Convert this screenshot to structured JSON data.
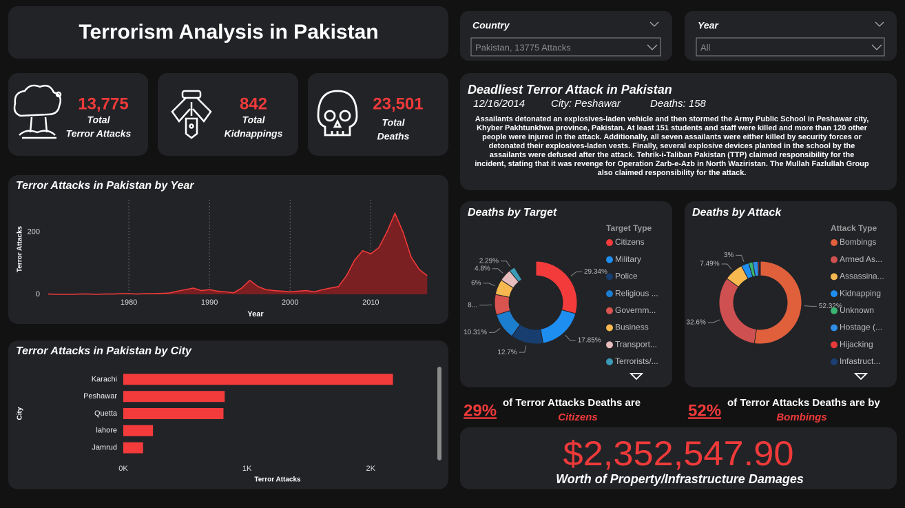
{
  "header": {
    "title": "Terrorism Analysis in Pakistan"
  },
  "filters": [
    {
      "label": "Country",
      "value": "Pakistan, 13775 Attacks"
    },
    {
      "label": "Year",
      "value": "All"
    }
  ],
  "kpis": [
    {
      "value": "13,775",
      "label": [
        "Total",
        "Terror Attacks"
      ]
    },
    {
      "value": "842",
      "label": [
        "Total",
        "Kidnappings"
      ]
    },
    {
      "value": "23,501",
      "label": [
        "Total",
        "Deaths"
      ]
    }
  ],
  "deadliest": {
    "title": "Deadliest Terror Attack in Pakistan",
    "date": "12/16/2014",
    "city": "City: Peshawar",
    "deaths": "Deaths: 158",
    "description": "Assailants detonated an explosives-laden vehicle and then stormed the Army Public School in Peshawar city, Khyber Pakhtunkhwa province, Pakistan. At least 151 students and staff were killed and more than 120 other people were injured in the attack. Additionally, all seven assailants were either killed by security forces or detonated their explosives-laden vests. Finally, several explosive devices planted in the school by the assailants were defused after the attack. Tehrik-i-Taliban Pakistan (TTP) claimed responsibility for the incident, stating that it was revenge for Operation Zarb-e-Azb in North Waziristan. The Mullah Fazlullah Group also claimed responsibility for the attack."
  },
  "chart_data": [
    {
      "type": "line",
      "title": "Terror Attacks in Pakistan by Year",
      "x_label": "Year",
      "y_label": "Terror Attacks",
      "x": [
        1970,
        1971,
        1972,
        1973,
        1974,
        1975,
        1976,
        1977,
        1978,
        1979,
        1980,
        1981,
        1982,
        1983,
        1984,
        1985,
        1986,
        1987,
        1988,
        1989,
        1990,
        1991,
        1992,
        1993,
        1994,
        1995,
        1996,
        1997,
        1998,
        1999,
        2000,
        2001,
        2002,
        2003,
        2004,
        2005,
        2006,
        2007,
        2008,
        2009,
        2010,
        2011,
        2012,
        2013,
        2014,
        2015,
        2016,
        2017
      ],
      "values": [
        1,
        0,
        0,
        0,
        1,
        1,
        0,
        1,
        1,
        2,
        2,
        1,
        2,
        2,
        3,
        4,
        10,
        15,
        20,
        12,
        15,
        10,
        8,
        5,
        20,
        45,
        25,
        15,
        12,
        10,
        8,
        10,
        12,
        8,
        15,
        20,
        25,
        60,
        110,
        140,
        130,
        150,
        200,
        260,
        200,
        120,
        80,
        60
      ],
      "color": "#f03a3a",
      "fill": "#7a1f22",
      "xlim": [
        1970,
        2018
      ],
      "xticks": [
        1980,
        1990,
        2000,
        2010
      ],
      "ylim": [
        0,
        290
      ],
      "yticks": [
        0,
        200
      ],
      "grid": "x"
    },
    {
      "type": "bar",
      "orientation": "horizontal",
      "title": "Terror Attacks in Pakistan by City",
      "x_label": "Terror Attacks",
      "y_label": "City",
      "categories": [
        "Karachi",
        "Peshawar",
        "Quetta",
        "lahore",
        "Jamrud"
      ],
      "values": [
        2180,
        820,
        810,
        240,
        160
      ],
      "color": "#f33b3b",
      "xlim": [
        0,
        2500
      ],
      "xticks": [
        {
          "value": 0,
          "label": "0K"
        },
        {
          "value": 1000,
          "label": "1K"
        },
        {
          "value": 2000,
          "label": "2K"
        }
      ]
    },
    {
      "type": "pie",
      "title": "Deaths by Target",
      "legend_title": "Target Type",
      "categories": [
        "Citizens",
        "Military",
        "Police",
        "Religious ...",
        "Governm...",
        "Business",
        "Transport...",
        "Terrorists/..."
      ],
      "values": [
        29.34,
        17.85,
        12.7,
        10.31,
        8,
        6,
        4.8,
        2.29
      ],
      "value_labels": [
        "29.34%",
        "17.85%",
        "12.7%",
        "10.31%",
        "8...",
        "6%",
        "4.8%",
        "2.29%"
      ],
      "colors": [
        "#f33b3b",
        "#1f8ef1",
        "#173e6e",
        "#1c7ecf",
        "#d9544f",
        "#f7b94f",
        "#e6bcbc",
        "#3a9ab8"
      ]
    },
    {
      "type": "pie",
      "title": "Deaths by Attack",
      "legend_title": "Attack Type",
      "categories": [
        "Bombings",
        "Armed As...",
        "Assassina...",
        "Kidnapping",
        "Unknown",
        "Hostage (...",
        "Hijacking",
        "Infastruct..."
      ],
      "values": [
        52.32,
        32.6,
        7.49,
        3,
        1.6,
        2,
        0.5,
        0.4
      ],
      "value_labels": [
        "52.32%",
        "32.6%",
        "7.49%",
        "3%",
        null,
        null,
        null,
        null
      ],
      "colors": [
        "#e0603c",
        "#cf5050",
        "#f7b94f",
        "#1f8ef1",
        "#3cb371",
        "#2e8ee8",
        "#e83a3a",
        "#1b3f73"
      ]
    }
  ],
  "callouts": [
    {
      "percent": "29%",
      "text": "of Terror Attacks Deaths are",
      "highlight": "Citizens"
    },
    {
      "percent": "52%",
      "text": "of Terror Attacks Deaths are by",
      "highlight": "Bombings"
    }
  ],
  "damage": {
    "amount": "$2,352,547.90",
    "label": "Worth of Property/Infrastructure Damages"
  }
}
